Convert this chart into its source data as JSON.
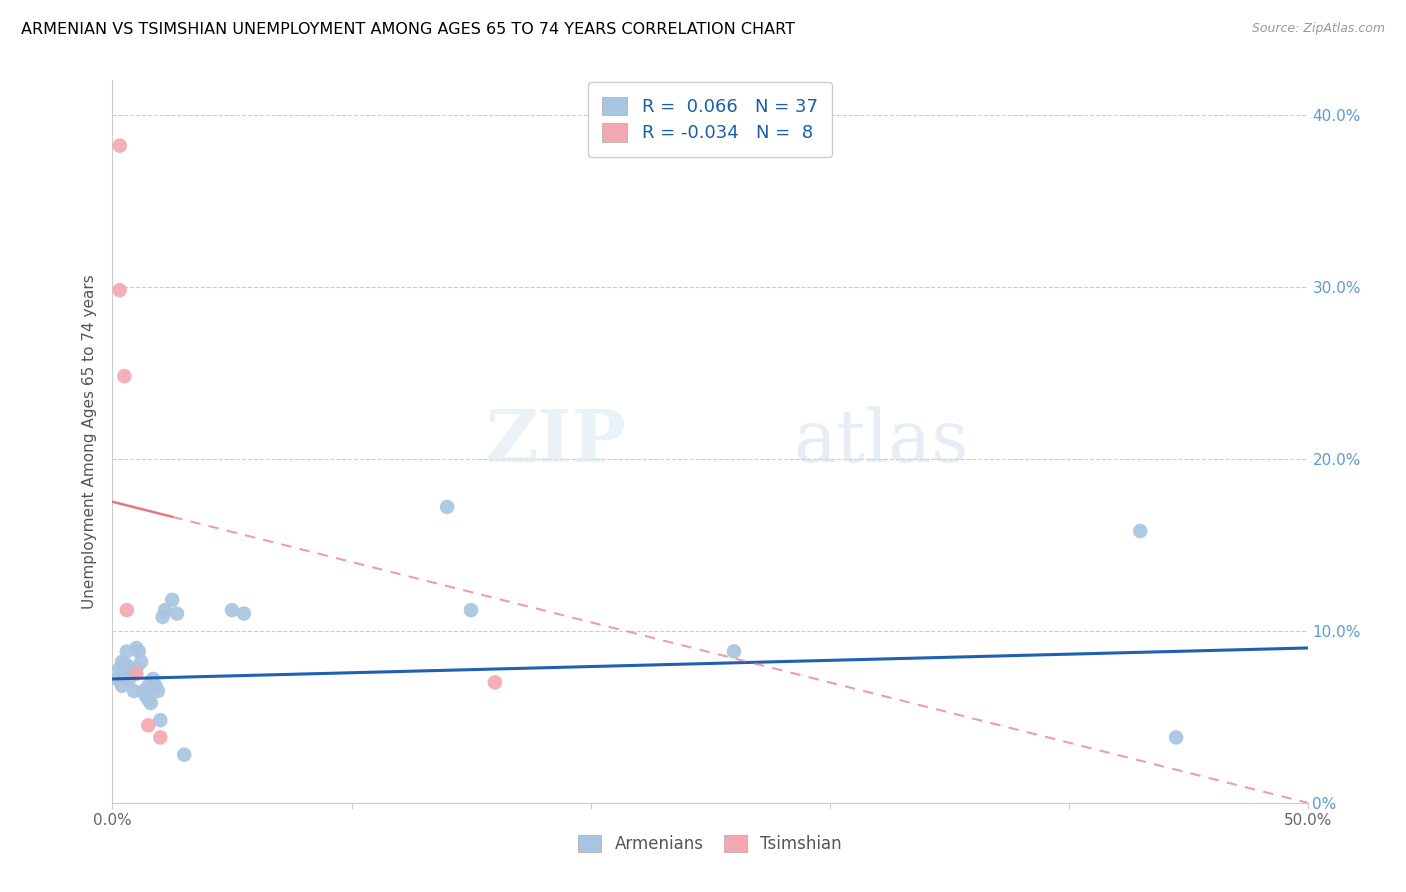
{
  "title": "ARMENIAN VS TSIMSHIAN UNEMPLOYMENT AMONG AGES 65 TO 74 YEARS CORRELATION CHART",
  "source": "Source: ZipAtlas.com",
  "ylabel": "Unemployment Among Ages 65 to 74 years",
  "xlim": [
    0.0,
    0.5
  ],
  "ylim": [
    0.0,
    0.42
  ],
  "xticks": [
    0.0,
    0.1,
    0.2,
    0.3,
    0.4,
    0.5
  ],
  "xticklabels": [
    "0.0%",
    "",
    "",
    "",
    "",
    "50.0%"
  ],
  "yticks": [
    0.0,
    0.1,
    0.2,
    0.3,
    0.4
  ],
  "yticklabels_right": [
    "0%",
    "10.0%",
    "20.0%",
    "30.0%",
    "40.0%"
  ],
  "legend_R_armenian": "0.066",
  "legend_N_armenian": "37",
  "legend_R_tsimshian": "-0.034",
  "legend_N_tsimshian": "8",
  "armenian_color": "#a8c4e0",
  "tsimshian_color": "#f4a7b0",
  "armenian_line_color": "#2060b0",
  "tsimshian_line_color": "#e07880",
  "armenians_x": [
    0.002,
    0.003,
    0.004,
    0.004,
    0.005,
    0.005,
    0.006,
    0.006,
    0.007,
    0.007,
    0.008,
    0.009,
    0.01,
    0.01,
    0.011,
    0.012,
    0.013,
    0.014,
    0.015,
    0.015,
    0.016,
    0.017,
    0.018,
    0.019,
    0.02,
    0.021,
    0.022,
    0.025,
    0.027,
    0.03,
    0.05,
    0.055,
    0.14,
    0.15,
    0.26,
    0.43,
    0.445
  ],
  "armenians_y": [
    0.072,
    0.078,
    0.068,
    0.082,
    0.072,
    0.08,
    0.088,
    0.08,
    0.076,
    0.072,
    0.078,
    0.065,
    0.09,
    0.078,
    0.088,
    0.082,
    0.065,
    0.062,
    0.068,
    0.06,
    0.058,
    0.072,
    0.068,
    0.065,
    0.048,
    0.108,
    0.112,
    0.118,
    0.11,
    0.028,
    0.112,
    0.11,
    0.172,
    0.112,
    0.088,
    0.158,
    0.038
  ],
  "tsimshian_x": [
    0.003,
    0.003,
    0.005,
    0.006,
    0.01,
    0.015,
    0.02,
    0.16
  ],
  "tsimshian_y": [
    0.382,
    0.298,
    0.248,
    0.112,
    0.075,
    0.045,
    0.038,
    0.07
  ],
  "arm_trendline_x0": 0.0,
  "arm_trendline_y0": 0.072,
  "arm_trendline_x1": 0.5,
  "arm_trendline_y1": 0.09,
  "tsi_trendline_x0": 0.0,
  "tsi_trendline_y0": 0.175,
  "tsi_trendline_x1": 0.5,
  "tsi_trendline_y1": 0.0
}
